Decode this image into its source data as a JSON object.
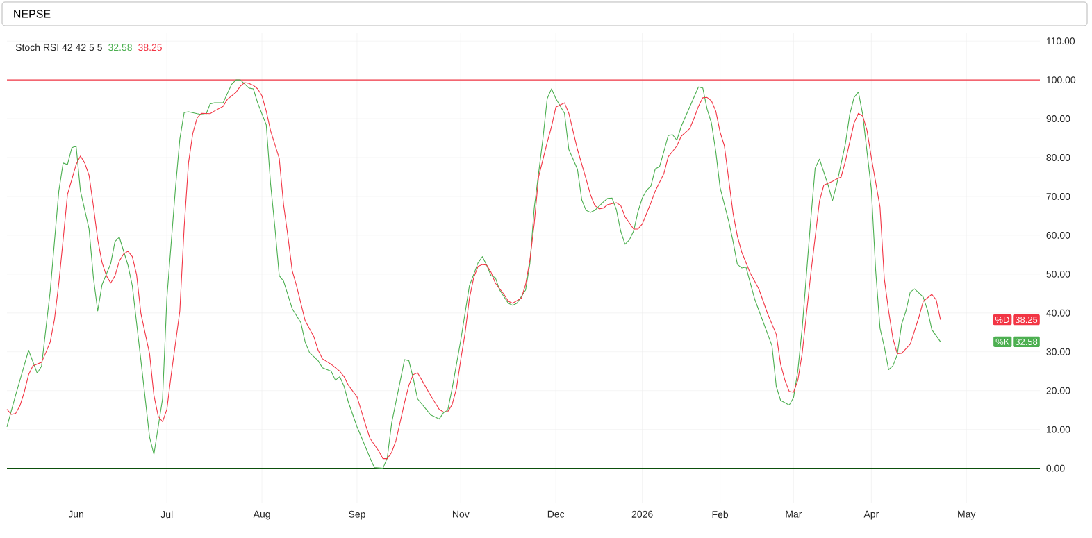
{
  "chart_data": {
    "type": "line",
    "title": "NEPSE",
    "subtitle": "Stoch RSI 42 42 5 5",
    "categories": [
      null,
      null,
      null,
      null,
      null,
      null,
      null,
      null,
      null,
      null,
      null,
      null,
      null,
      null,
      null,
      null,
      "Jun",
      null,
      null,
      null,
      null,
      null,
      null,
      null,
      null,
      null,
      null,
      null,
      null,
      null,
      null,
      null,
      null,
      null,
      null,
      null,
      null,
      "Jul",
      null,
      null,
      null,
      null,
      null,
      null,
      null,
      null,
      null,
      null,
      null,
      null,
      null,
      null,
      null,
      null,
      null,
      null,
      null,
      null,
      null,
      "Aug",
      null,
      null,
      null,
      null,
      null,
      null,
      null,
      null,
      null,
      null,
      null,
      null,
      null,
      null,
      null,
      null,
      null,
      null,
      null,
      null,
      null,
      "Sep",
      null,
      null,
      null,
      null,
      null,
      null,
      null,
      null,
      null,
      null,
      null,
      null,
      null,
      null,
      null,
      null,
      null,
      null,
      null,
      null,
      null,
      null,
      null,
      "Nov",
      null,
      null,
      null,
      null,
      null,
      null,
      null,
      null,
      null,
      null,
      null,
      null,
      null,
      null,
      null,
      null,
      null,
      null,
      null,
      null,
      null,
      "Dec",
      null,
      null,
      null,
      null,
      null,
      null,
      null,
      null,
      null,
      null,
      null,
      null,
      null,
      null,
      null,
      null,
      null,
      null,
      null,
      "2026",
      null,
      null,
      null,
      null,
      null,
      null,
      null,
      null,
      null,
      null,
      null,
      null,
      null,
      null,
      null,
      null,
      null,
      "Feb",
      null,
      null,
      null,
      null,
      null,
      null,
      null,
      null,
      null,
      null,
      null,
      null,
      null,
      null,
      null,
      null,
      "Mar",
      null,
      null,
      null,
      null,
      null,
      null,
      null,
      null,
      null,
      null,
      null,
      null,
      null,
      null,
      null,
      null,
      null,
      "Apr",
      null,
      null,
      null,
      null,
      null,
      null,
      null,
      null,
      null,
      null,
      null,
      null,
      null,
      null,
      null,
      null,
      null,
      null,
      null,
      null,
      null,
      "May",
      null,
      null,
      null,
      null,
      null,
      null,
      null,
      null,
      null,
      null,
      null,
      null,
      null,
      null,
      null,
      null,
      null
    ],
    "series": [
      {
        "name": "%K",
        "color": "#4caf50",
        "values": [
          10.7,
          null,
          18.8,
          null,
          null,
          30.4,
          null,
          24.5,
          26.3,
          null,
          45.5,
          null,
          71.4,
          78.6,
          78.2,
          82.5,
          83.0,
          71.4,
          null,
          61.6,
          49.1,
          40.5,
          47.3,
          null,
          52.7,
          58.4,
          59.5,
          null,
          52.3,
          47.0,
          null,
          27.7,
          null,
          8.0,
          3.6,
          null,
          17.9,
          43.8,
          null,
          72.3,
          84.8,
          91.6,
          91.8,
          null,
          91.3,
          91.1,
          91.0,
          93.8,
          94.1,
          null,
          94.1,
          null,
          98.9,
          100,
          100,
          null,
          97.9,
          97.7,
          94.1,
          null,
          88.4,
          73.2,
          62.0,
          49.6,
          48.2,
          null,
          41.1,
          null,
          37.5,
          32.5,
          29.8,
          null,
          27.7,
          25.9,
          null,
          25.0,
          22.7,
          23.6,
          21.1,
          17.0,
          null,
          10.7,
          null,
          5.4,
          2.7,
          0.2,
          null,
          0,
          2.7,
          11.6,
          null,
          null,
          28.0,
          27.7,
          23.2,
          17.9,
          null,
          15.2,
          13.8,
          null,
          12.7,
          14.3,
          15.0,
          20.5,
          null,
          33.0,
          null,
          47.0,
          null,
          52.9,
          54.5,
          52.3,
          49.6,
          49.1,
          45.9,
          null,
          42.5,
          42.0,
          42.5,
          null,
          45.9,
          52.7,
          67.0,
          null,
          84.8,
          95.2,
          97.7,
          95.2,
          null,
          91.4,
          82.1,
          null,
          77.0,
          69.1,
          66.4,
          65.9,
          66.4,
          null,
          68.6,
          69.5,
          69.6,
          66.6,
          61.1,
          57.7,
          58.8,
          61.1,
          66.1,
          69.6,
          71.6,
          72.7,
          77.1,
          77.7,
          81.6,
          85.7,
          85.9,
          84.5,
          88.0,
          null,
          null,
          null,
          98.2,
          97.9,
          92.5,
          88.9,
          81.6,
          72.3,
          null,
          63.6,
          58.4,
          52.5,
          51.6,
          51.8,
          null,
          43.6,
          null,
          null,
          null,
          31.6,
          21.1,
          17.5,
          null,
          16.3,
          18.2,
          25.2,
          36.1,
          null,
          64.3,
          77.3,
          79.6,
          null,
          72.9,
          68.9,
          73.2,
          null,
          83.6,
          91.1,
          95.5,
          96.9,
          91.1,
          null,
          71.8,
          50.9,
          36.1,
          31.3,
          25.4,
          26.4,
          29.3,
          37.1,
          40.5,
          45.4,
          46.2,
          null,
          44.1,
          40.7,
          35.7,
          null,
          32.58,
          null,
          null,
          null,
          null,
          null,
          null,
          null,
          null,
          null,
          null,
          null,
          null,
          null,
          null,
          null,
          null,
          null,
          null,
          null,
          null,
          null,
          null,
          null
        ]
      },
      {
        "name": "%D",
        "color": "#f23645",
        "values": [
          15.2,
          13.9,
          14.1,
          16.1,
          19.6,
          24.1,
          26.4,
          null,
          27.3,
          29.8,
          32.5,
          38.4,
          47.7,
          58.9,
          70.5,
          null,
          78.2,
          80.4,
          78.6,
          75.4,
          67.5,
          58.9,
          53.0,
          49.6,
          47.7,
          49.6,
          53.4,
          55.2,
          55.9,
          54.5,
          49.8,
          39.8,
          null,
          29.5,
          18.8,
          13.4,
          12.0,
          15.2,
          24.1,
          null,
          40.5,
          62.1,
          78.6,
          86.3,
          90.2,
          91.4,
          null,
          91.3,
          92.0,
          null,
          93.2,
          95.0,
          null,
          96.8,
          98.4,
          99.3,
          99.1,
          98.6,
          97.7,
          95.9,
          91.9,
          86.9,
          null,
          79.8,
          67.9,
          59.8,
          50.9,
          47.0,
          42.5,
          38.0,
          null,
          33.9,
          30.4,
          28.2,
          null,
          26.8,
          null,
          25.0,
          23.6,
          21.4,
          null,
          18.4,
          14.8,
          11.1,
          7.7,
          null,
          4.5,
          2.5,
          2.5,
          4.1,
          7.1,
          12.0,
          17.0,
          21.4,
          24.1,
          24.6,
          22.7,
          null,
          18.8,
          null,
          15.2,
          14.5,
          14.6,
          16.4,
          20.5,
          28.0,
          34.8,
          43.8,
          49.1,
          52.0,
          52.5,
          52.3,
          50.5,
          47.7,
          null,
          44.8,
          43.0,
          42.5,
          null,
          43.8,
          47.3,
          53.6,
          63.0,
          75.0,
          null,
          83.9,
          88.0,
          93.0,
          null,
          94.1,
          91.4,
          null,
          82.1,
          null,
          74.5,
          70.5,
          67.7,
          66.8,
          67.0,
          67.9,
          null,
          68.4,
          67.7,
          64.8,
          null,
          61.6,
          61.6,
          62.9,
          null,
          68.4,
          71.4,
          null,
          75.9,
          80.2,
          null,
          83.0,
          85.5,
          null,
          87.5,
          90.2,
          93.2,
          95.4,
          95.5,
          94.6,
          92.0,
          86.6,
          83.0,
          null,
          65.7,
          59.8,
          55.7,
          null,
          50.2,
          48.2,
          46.1,
          null,
          39.8,
          null,
          34.5,
          26.8,
          22.7,
          19.8,
          19.6,
          22.7,
          29.6,
          null,
          50.2,
          null,
          68.8,
          72.9,
          null,
          73.9,
          74.5,
          75.0,
          79.1,
          null,
          88.9,
          91.4,
          90.7,
          87.0,
          80.0,
          null,
          67.3,
          48.8,
          40.5,
          33.4,
          29.5,
          29.6,
          null,
          32.0,
          null,
          38.9,
          43.0,
          null,
          44.8,
          43.4,
          38.25,
          null,
          null,
          null,
          null,
          null,
          null,
          null,
          null,
          null,
          null,
          null,
          null,
          null,
          null,
          null,
          null,
          null,
          null,
          null,
          null,
          null,
          null,
          null
        ]
      }
    ],
    "ylim": [
      -9,
      112
    ],
    "yticks": [
      {
        "value": 0,
        "label": "0.00"
      },
      {
        "value": 10,
        "label": "10.00"
      },
      {
        "value": 20,
        "label": "20.00"
      },
      {
        "value": 30,
        "label": "30.00"
      },
      {
        "value": 40,
        "label": "40.00"
      },
      {
        "value": 50,
        "label": "50.00"
      },
      {
        "value": 60,
        "label": "60.00"
      },
      {
        "value": 70,
        "label": "70.00"
      },
      {
        "value": 80,
        "label": "80.00"
      },
      {
        "value": 90,
        "label": "90.00"
      },
      {
        "value": 100,
        "label": "100.00"
      },
      {
        "value": 110,
        "label": "110.00"
      }
    ],
    "ref_lines": [
      {
        "axis": "y",
        "value": 100,
        "color": "#f23645"
      },
      {
        "axis": "y",
        "value": 0,
        "color": "#0b4f0b"
      }
    ],
    "annotations": [
      "32.58",
      "38.25",
      "32.58",
      "38.25"
    ],
    "grid": true,
    "legend": "right",
    "marker": "none",
    "line_style": "solid"
  }
}
